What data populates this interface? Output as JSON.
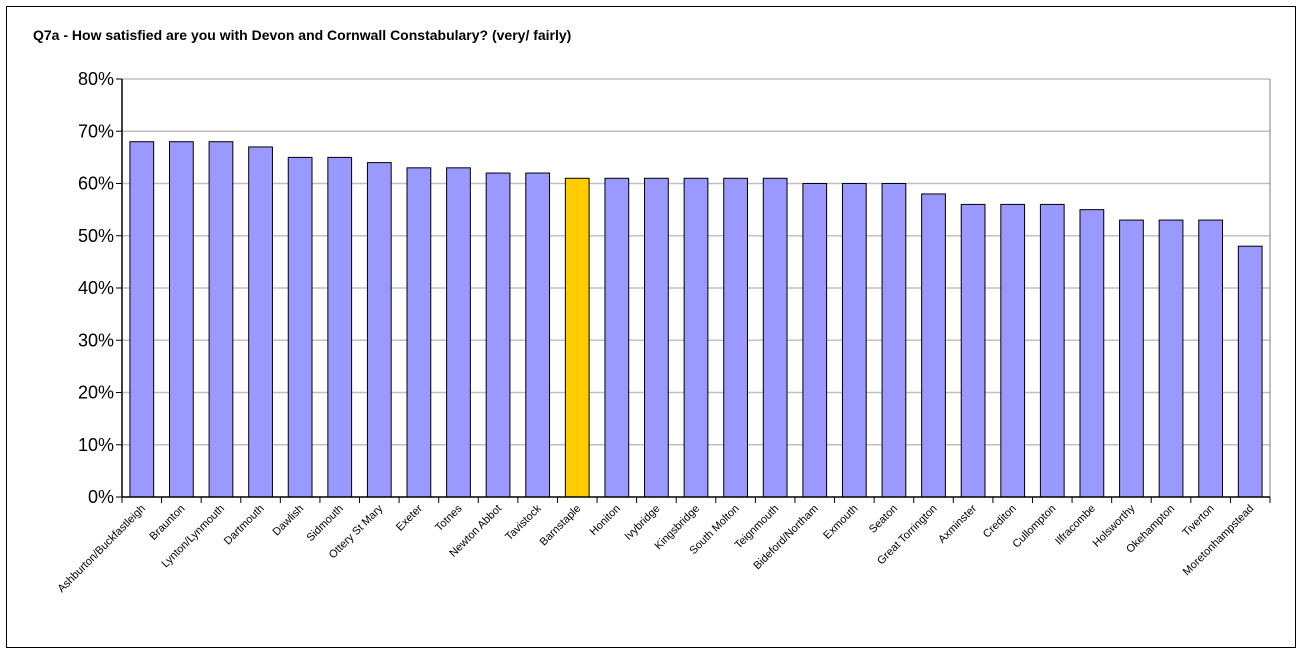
{
  "chart_data": {
    "type": "bar",
    "title": "Q7a - How satisfied are you with Devon and Cornwall Constabulary? (very/ fairly)",
    "xlabel": "",
    "ylabel": "",
    "ylim": [
      0,
      80
    ],
    "yticks": [
      "0%",
      "10%",
      "20%",
      "30%",
      "40%",
      "50%",
      "60%",
      "70%",
      "80%"
    ],
    "grid": true,
    "colors": {
      "default": "#9999FF",
      "highlight": "#FFCC00",
      "grid": "#C0C0C0"
    },
    "highlight_category": "Barnstaple",
    "categories": [
      "Ashburton/Buckfastleigh",
      "Braunton",
      "Lynton/Lynmouth",
      "Dartmouth",
      "Dawlish",
      "Sidmouth",
      "Ottery St Mary",
      "Exeter",
      "Totnes",
      "Newton Abbot",
      "Tavistock",
      "Barnstaple",
      "Honiton",
      "Ivybridge",
      "Kingsbridge",
      "South Molton",
      "Teignmouth",
      "Bideford/Northam",
      "Exmouth",
      "Seaton",
      "Great Torrington",
      "Axminster",
      "Crediton",
      "Cullompton",
      "Ilfracombe",
      "Holsworthy",
      "Okehampton",
      "Tiverton",
      "Moretonhampstead"
    ],
    "values": [
      68,
      68,
      68,
      67,
      65,
      65,
      64,
      63,
      63,
      62,
      62,
      61,
      61,
      61,
      61,
      61,
      61,
      60,
      60,
      60,
      58,
      56,
      56,
      56,
      55,
      53,
      53,
      53,
      48
    ]
  }
}
